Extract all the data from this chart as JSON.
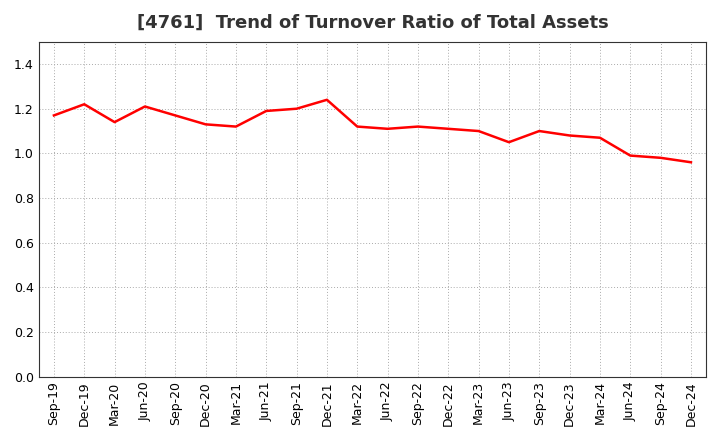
{
  "title": "[4761]  Trend of Turnover Ratio of Total Assets",
  "x_labels": [
    "Sep-19",
    "Dec-19",
    "Mar-20",
    "Jun-20",
    "Sep-20",
    "Dec-20",
    "Mar-21",
    "Jun-21",
    "Sep-21",
    "Dec-21",
    "Mar-22",
    "Jun-22",
    "Sep-22",
    "Dec-22",
    "Mar-23",
    "Jun-23",
    "Sep-23",
    "Dec-23",
    "Mar-24",
    "Jun-24",
    "Sep-24",
    "Dec-24"
  ],
  "y_values": [
    1.17,
    1.22,
    1.14,
    1.21,
    1.17,
    1.13,
    1.12,
    1.19,
    1.2,
    1.24,
    1.12,
    1.11,
    1.12,
    1.11,
    1.1,
    1.05,
    1.1,
    1.08,
    1.07,
    0.99,
    0.98,
    0.96
  ],
  "line_color": "#ff0000",
  "line_width": 1.8,
  "ylim": [
    0.0,
    1.5
  ],
  "yticks": [
    0.0,
    0.2,
    0.4,
    0.6,
    0.8,
    1.0,
    1.2,
    1.4
  ],
  "grid_color": "#aaaaaa",
  "background_color": "#ffffff",
  "title_fontsize": 13,
  "tick_fontsize": 9,
  "title_color": "#333333"
}
